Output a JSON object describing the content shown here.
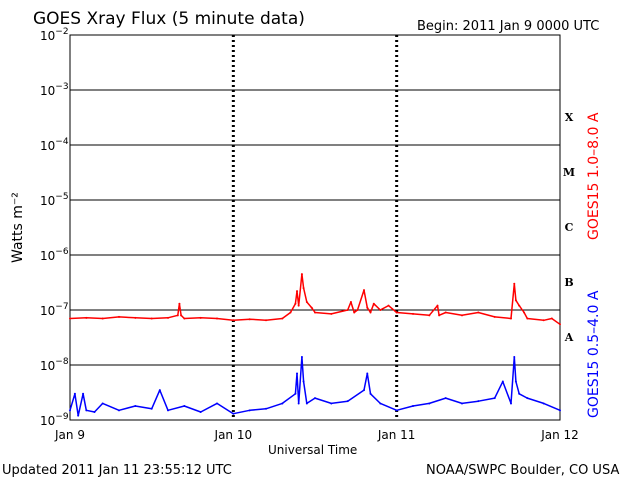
{
  "header": {
    "title": "GOES Xray Flux (5 minute data)",
    "begin": "Begin:  2011 Jan 9 0000 UTC"
  },
  "footer": {
    "updated": "Updated 2011 Jan 11 23:55:12 UTC",
    "source": "NOAA/SWPC Boulder, CO USA"
  },
  "chart_data": {
    "type": "line",
    "title": "GOES Xray Flux (5 minute data)",
    "xlabel": "Universal Time",
    "ylabel": "Watts m⁻²",
    "yscale": "log",
    "ylim": [
      1e-09,
      0.01
    ],
    "xlim": [
      0,
      3
    ],
    "x_units": "days since 2011 Jan 9 0000 UTC",
    "x_ticks": [
      {
        "value": 0,
        "label": "Jan 9"
      },
      {
        "value": 1,
        "label": "Jan 10"
      },
      {
        "value": 2,
        "label": "Jan 11"
      },
      {
        "value": 3,
        "label": "Jan 12"
      }
    ],
    "y_ticks": [
      {
        "value": 1e-09,
        "mant": "10",
        "exp": "−9"
      },
      {
        "value": 1e-08,
        "mant": "10",
        "exp": "−8"
      },
      {
        "value": 1e-07,
        "mant": "10",
        "exp": "−7"
      },
      {
        "value": 1e-06,
        "mant": "10",
        "exp": "−6"
      },
      {
        "value": 1e-05,
        "mant": "10",
        "exp": "−5"
      },
      {
        "value": 0.0001,
        "mant": "10",
        "exp": "−4"
      },
      {
        "value": 0.001,
        "mant": "10",
        "exp": "−3"
      },
      {
        "value": 0.01,
        "mant": "10",
        "exp": "−2"
      }
    ],
    "flare_classes": [
      {
        "label": "X",
        "value": 0.00032
      },
      {
        "label": "M",
        "value": 3.2e-05
      },
      {
        "label": "C",
        "value": 3.2e-06
      },
      {
        "label": "B",
        "value": 3.2e-07
      },
      {
        "label": "A",
        "value": 3.2e-08
      }
    ],
    "grid": true,
    "series": [
      {
        "name": "GOES15 1.0–8.0 A",
        "color": "#ff0000",
        "x": [
          0,
          0.1,
          0.2,
          0.3,
          0.4,
          0.5,
          0.6,
          0.66,
          0.67,
          0.68,
          0.7,
          0.8,
          0.9,
          1.0,
          1.1,
          1.2,
          1.3,
          1.35,
          1.38,
          1.39,
          1.4,
          1.42,
          1.43,
          1.45,
          1.48,
          1.5,
          1.6,
          1.7,
          1.72,
          1.74,
          1.76,
          1.8,
          1.82,
          1.84,
          1.86,
          1.9,
          1.95,
          2.0,
          2.1,
          2.2,
          2.25,
          2.26,
          2.3,
          2.4,
          2.5,
          2.6,
          2.7,
          2.72,
          2.73,
          2.75,
          2.78,
          2.8,
          2.9,
          2.95,
          3.0
        ],
        "values": [
          7e-08,
          7.2e-08,
          7e-08,
          7.5e-08,
          7.2e-08,
          7e-08,
          7.2e-08,
          8e-08,
          1.3e-07,
          8e-08,
          7e-08,
          7.2e-08,
          7e-08,
          6.5e-08,
          6.8e-08,
          6.5e-08,
          7e-08,
          9e-08,
          1.3e-07,
          2.2e-07,
          1.2e-07,
          4.5e-07,
          2.5e-07,
          1.4e-07,
          1.1e-07,
          9e-08,
          8.5e-08,
          1e-07,
          1.4e-07,
          9e-08,
          1e-07,
          2.3e-07,
          1.1e-07,
          9e-08,
          1.3e-07,
          1e-07,
          1.2e-07,
          9e-08,
          8.5e-08,
          8e-08,
          1.2e-07,
          8e-08,
          9e-08,
          8e-08,
          9e-08,
          7.5e-08,
          7e-08,
          3e-07,
          1.5e-07,
          1.2e-07,
          9e-08,
          7e-08,
          6.5e-08,
          7e-08,
          5.5e-08
        ]
      },
      {
        "name": "GOES15 0.5–4.0 A",
        "color": "#0000ff",
        "x": [
          0,
          0.03,
          0.05,
          0.08,
          0.1,
          0.15,
          0.2,
          0.3,
          0.4,
          0.5,
          0.55,
          0.6,
          0.7,
          0.8,
          0.9,
          1.0,
          1.1,
          1.2,
          1.3,
          1.38,
          1.39,
          1.4,
          1.42,
          1.43,
          1.45,
          1.5,
          1.6,
          1.7,
          1.8,
          1.82,
          1.84,
          1.9,
          2.0,
          2.1,
          2.2,
          2.3,
          2.4,
          2.5,
          2.6,
          2.65,
          2.7,
          2.72,
          2.73,
          2.75,
          2.8,
          2.9,
          3.0
        ],
        "values": [
          1.5e-09,
          3e-09,
          1.2e-09,
          3e-09,
          1.5e-09,
          1.4e-09,
          2e-09,
          1.5e-09,
          1.8e-09,
          1.6e-09,
          3.5e-09,
          1.5e-09,
          1.8e-09,
          1.4e-09,
          2e-09,
          1.3e-09,
          1.5e-09,
          1.6e-09,
          2e-09,
          3e-09,
          7e-09,
          2e-09,
          1.4e-08,
          5e-09,
          2e-09,
          2.5e-09,
          2e-09,
          2.2e-09,
          3.5e-09,
          7e-09,
          3e-09,
          2e-09,
          1.5e-09,
          1.8e-09,
          2e-09,
          2.5e-09,
          2e-09,
          2.2e-09,
          2.5e-09,
          5e-09,
          2e-09,
          1.4e-08,
          5e-09,
          3e-09,
          2.5e-09,
          2e-09,
          1.5e-09
        ]
      }
    ]
  }
}
